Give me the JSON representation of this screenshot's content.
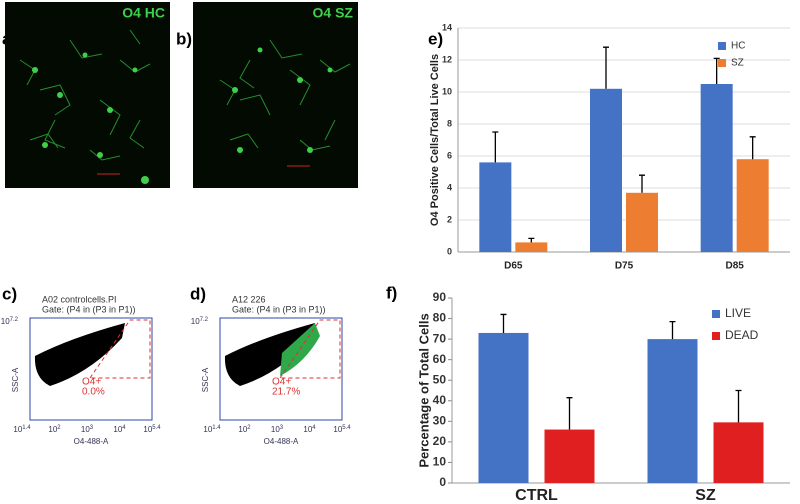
{
  "images": [
    {
      "label": "a)",
      "caption": "O4 HC"
    },
    {
      "label": "b)",
      "caption": "O4 SZ"
    }
  ],
  "flow": [
    {
      "label": "c)",
      "sample": "A02 controlcells.PI",
      "gate": "Gate: (P4 in (P3 in P1))",
      "population": "O4+",
      "percent": "0.0%",
      "ylabel": "SSC-A",
      "xlabel": "O4-488-A",
      "base": "10",
      "ytick": "7.2",
      "xticks": [
        "1.4",
        "2",
        "3",
        "4",
        "5.4"
      ]
    },
    {
      "label": "d)",
      "sample": "A12 226",
      "gate": "Gate: (P4 in (P3 in P1))",
      "population": "O4+",
      "percent": "21.7%",
      "ylabel": "SSC-A",
      "xlabel": "O4-488-A",
      "base": "10",
      "ytick": "7.2",
      "xticks": [
        "1.4",
        "2",
        "3",
        "4",
        "5.4"
      ]
    }
  ],
  "chart_data": [
    {
      "type": "bar",
      "panel": "e)",
      "ylabel": "O4 Positive Cells/Total Live Cells",
      "categories": [
        "D65",
        "D75",
        "D85"
      ],
      "series": [
        {
          "name": "HC",
          "color": "#4472c4",
          "values": [
            5.6,
            10.2,
            10.5
          ],
          "errors": [
            1.9,
            2.6,
            1.6
          ]
        },
        {
          "name": "SZ",
          "color": "#ed7d31",
          "values": [
            0.6,
            3.7,
            5.8
          ],
          "errors": [
            0.25,
            1.1,
            1.4
          ]
        }
      ],
      "ylim": [
        0,
        14
      ],
      "yticks": [
        0,
        2,
        4,
        6,
        8,
        10,
        12,
        14
      ],
      "grid": true,
      "legend": "top-right"
    },
    {
      "type": "bar",
      "panel": "f)",
      "ylabel": "Percentage of Total Cells",
      "categories": [
        "CTRL",
        "SZ"
      ],
      "series": [
        {
          "name": "LIVE",
          "color": "#4472c4",
          "values": [
            73,
            70
          ],
          "errors": [
            9,
            8.5
          ]
        },
        {
          "name": "DEAD",
          "color": "#e02020",
          "values": [
            26,
            29.5
          ],
          "errors": [
            15.5,
            15.5
          ]
        }
      ],
      "ylim": [
        0,
        90
      ],
      "yticks": [
        0,
        10,
        20,
        30,
        40,
        50,
        60,
        70,
        80,
        90
      ],
      "grid": false,
      "legend": "top-right"
    }
  ]
}
